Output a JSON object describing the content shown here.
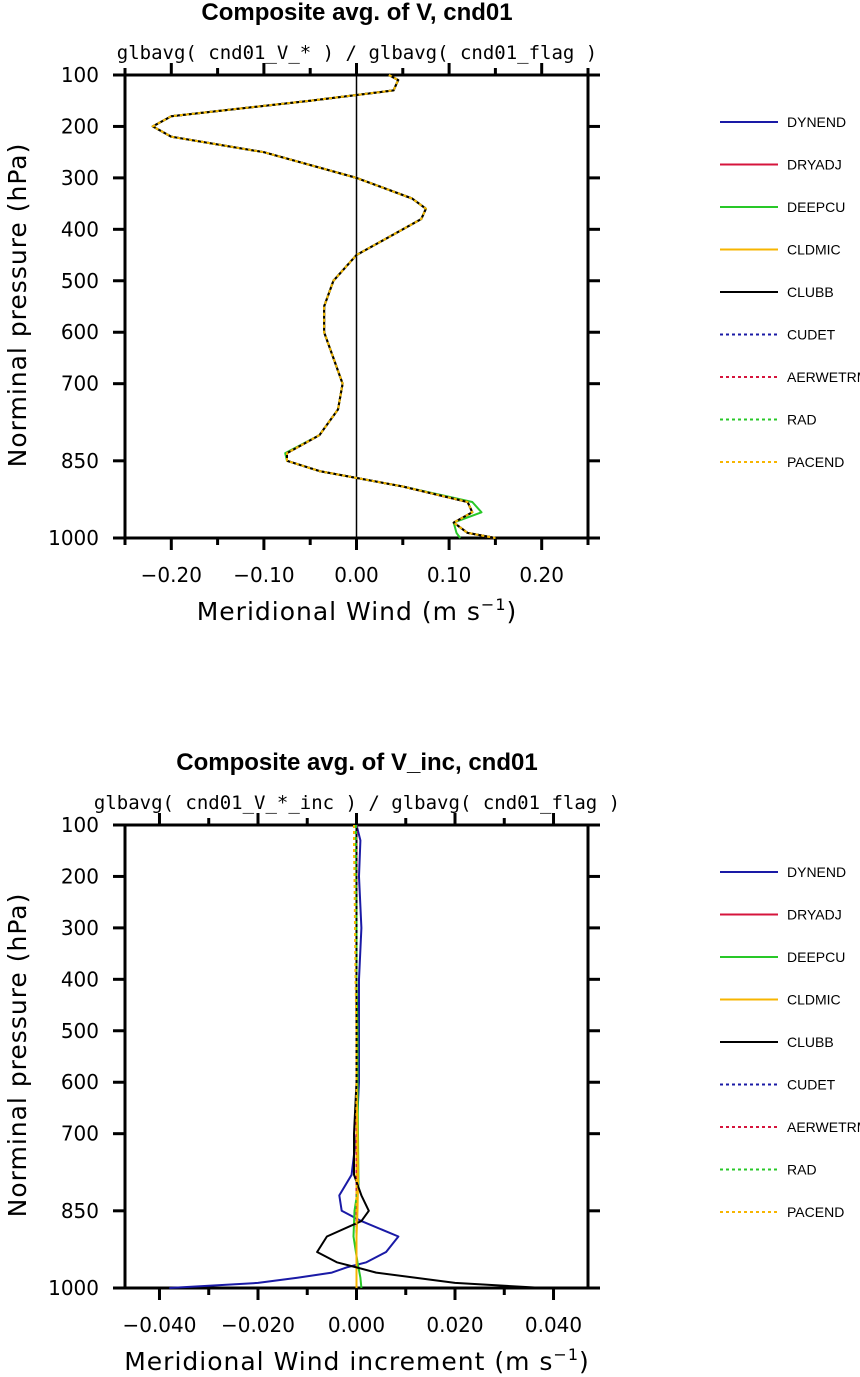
{
  "colors": {
    "DYNEND": "#1a1aa6",
    "DRYADJ": "#d6143c",
    "DEEPCU": "#28c828",
    "CLDMIC": "#f7b500",
    "CLUBB": "#000000",
    "CUDET": "#1a1aa6",
    "AERWETRM": "#d6143c",
    "RAD": "#28c828",
    "PACEND": "#f7b500"
  },
  "chart_data": [
    {
      "type": "line",
      "title": "Composite avg. of V, cnd01",
      "subtitle": "glbavg( cnd01_V_* ) / glbavg( cnd01_flag )",
      "xlabel": "Meridional Wind (m s",
      "xlabel_exp": "−1",
      "xlabel_close": ")",
      "ylabel": "Norminal pressure (hPa)",
      "xlim": [
        -0.25,
        0.25
      ],
      "ylim": [
        100,
        1000
      ],
      "y_axis": "pressure (nonlinear, inverted)",
      "xticks": [
        -0.2,
        -0.1,
        0.0,
        0.1,
        0.2
      ],
      "xtick_labels": [
        "−0.20",
        "−0.10",
        "0.00",
        "0.10",
        "0.20"
      ],
      "yticks": [
        100,
        200,
        300,
        400,
        500,
        600,
        700,
        850,
        1000
      ],
      "ytick_labels": [
        "100",
        "200",
        "300",
        "400",
        "500",
        "600",
        "700",
        "850",
        "1000"
      ],
      "zero_line": true,
      "legend": [
        "DYNEND",
        "DRYADJ",
        "DEEPCU",
        "CLDMIC",
        "CLUBB",
        "CUDET",
        "AERWETRM",
        "RAD",
        "PACEND"
      ],
      "legend_styles": [
        "solid",
        "solid",
        "solid",
        "solid",
        "solid",
        "dotted",
        "dotted",
        "dotted",
        "dotted"
      ],
      "series": [
        {
          "name": "DYNEND",
          "y": [
            100,
            110,
            130,
            150,
            180,
            200,
            220,
            250,
            300,
            340,
            360,
            380,
            420,
            450,
            500,
            550,
            600,
            650,
            700,
            750,
            800,
            835,
            850,
            870,
            900,
            930,
            950,
            970,
            990,
            1000
          ],
          "values": [
            0.035,
            0.045,
            0.04,
            -0.05,
            -0.2,
            -0.22,
            -0.2,
            -0.1,
            0.0,
            0.06,
            0.075,
            0.07,
            0.03,
            0.0,
            -0.025,
            -0.035,
            -0.035,
            -0.025,
            -0.015,
            -0.02,
            -0.04,
            -0.075,
            -0.075,
            -0.04,
            0.05,
            0.12,
            0.125,
            0.105,
            0.12,
            0.15
          ]
        },
        {
          "name": "DRYADJ",
          "y": [
            100,
            110,
            130,
            150,
            180,
            200,
            220,
            250,
            300,
            340,
            360,
            380,
            420,
            450,
            500,
            550,
            600,
            650,
            700,
            750,
            800,
            835,
            850,
            870,
            900,
            930,
            950,
            970,
            990,
            1000
          ],
          "values": [
            0.035,
            0.045,
            0.04,
            -0.05,
            -0.2,
            -0.22,
            -0.2,
            -0.1,
            0.0,
            0.06,
            0.075,
            0.07,
            0.03,
            0.0,
            -0.025,
            -0.035,
            -0.035,
            -0.025,
            -0.015,
            -0.02,
            -0.04,
            -0.075,
            -0.075,
            -0.04,
            0.05,
            0.12,
            0.125,
            0.105,
            0.12,
            0.15
          ]
        },
        {
          "name": "DEEPCU",
          "y": [
            100,
            110,
            130,
            150,
            180,
            200,
            220,
            250,
            300,
            340,
            360,
            380,
            420,
            450,
            500,
            550,
            600,
            650,
            700,
            750,
            800,
            835,
            850,
            870,
            900,
            930,
            950,
            970,
            990,
            1000
          ],
          "values": [
            0.035,
            0.045,
            0.04,
            -0.05,
            -0.2,
            -0.22,
            -0.2,
            -0.1,
            0.0,
            0.06,
            0.075,
            0.07,
            0.03,
            0.0,
            -0.025,
            -0.035,
            -0.035,
            -0.025,
            -0.015,
            -0.02,
            -0.04,
            -0.077,
            -0.075,
            -0.04,
            0.05,
            0.125,
            0.135,
            0.105,
            0.108,
            0.112
          ]
        },
        {
          "name": "CLDMIC",
          "y": [
            100,
            110,
            130,
            150,
            180,
            200,
            220,
            250,
            300,
            340,
            360,
            380,
            420,
            450,
            500,
            550,
            600,
            650,
            700,
            750,
            800,
            835,
            850,
            870,
            900,
            930,
            950,
            970,
            990,
            1000
          ],
          "values": [
            0.035,
            0.045,
            0.04,
            -0.05,
            -0.2,
            -0.22,
            -0.2,
            -0.1,
            0.0,
            0.06,
            0.075,
            0.07,
            0.03,
            0.0,
            -0.025,
            -0.035,
            -0.035,
            -0.025,
            -0.015,
            -0.02,
            -0.04,
            -0.075,
            -0.075,
            -0.04,
            0.05,
            0.12,
            0.125,
            0.105,
            0.12,
            0.15
          ]
        },
        {
          "name": "CLUBB",
          "y": [
            100,
            110,
            130,
            150,
            180,
            200,
            220,
            250,
            300,
            340,
            360,
            380,
            420,
            450,
            500,
            550,
            600,
            650,
            700,
            750,
            800,
            835,
            850,
            870,
            900,
            930,
            950,
            970,
            990,
            1000
          ],
          "values": [
            0.035,
            0.045,
            0.04,
            -0.05,
            -0.2,
            -0.22,
            -0.2,
            -0.1,
            0.0,
            0.06,
            0.075,
            0.07,
            0.03,
            0.0,
            -0.025,
            -0.035,
            -0.035,
            -0.025,
            -0.015,
            -0.02,
            -0.04,
            -0.075,
            -0.075,
            -0.04,
            0.05,
            0.12,
            0.125,
            0.105,
            0.12,
            0.15
          ]
        },
        {
          "name": "CUDET",
          "y": [
            100,
            110,
            130,
            150,
            180,
            200,
            220,
            250,
            300,
            340,
            360,
            380,
            420,
            450,
            500,
            550,
            600,
            650,
            700,
            750,
            800,
            835,
            850,
            870,
            900,
            930,
            950,
            970,
            990,
            1000
          ],
          "values": [
            0.035,
            0.045,
            0.04,
            -0.05,
            -0.2,
            -0.22,
            -0.2,
            -0.1,
            0.0,
            0.06,
            0.075,
            0.07,
            0.03,
            0.0,
            -0.025,
            -0.035,
            -0.035,
            -0.025,
            -0.015,
            -0.02,
            -0.04,
            -0.075,
            -0.075,
            -0.04,
            0.05,
            0.12,
            0.125,
            0.105,
            0.12,
            0.15
          ]
        },
        {
          "name": "AERWETRM",
          "y": [
            100,
            110,
            130,
            150,
            180,
            200,
            220,
            250,
            300,
            340,
            360,
            380,
            420,
            450,
            500,
            550,
            600,
            650,
            700,
            750,
            800,
            835,
            850,
            870,
            900,
            930,
            950,
            970,
            990,
            1000
          ],
          "values": [
            0.035,
            0.045,
            0.04,
            -0.05,
            -0.2,
            -0.22,
            -0.2,
            -0.1,
            0.0,
            0.06,
            0.075,
            0.07,
            0.03,
            0.0,
            -0.025,
            -0.035,
            -0.035,
            -0.025,
            -0.015,
            -0.02,
            -0.04,
            -0.075,
            -0.075,
            -0.04,
            0.05,
            0.12,
            0.125,
            0.105,
            0.12,
            0.15
          ]
        },
        {
          "name": "RAD",
          "y": [
            100,
            110,
            130,
            150,
            180,
            200,
            220,
            250,
            300,
            340,
            360,
            380,
            420,
            450,
            500,
            550,
            600,
            650,
            700,
            750,
            800,
            835,
            850,
            870,
            900,
            930,
            950,
            970,
            990,
            1000
          ],
          "values": [
            0.035,
            0.045,
            0.04,
            -0.05,
            -0.2,
            -0.22,
            -0.2,
            -0.1,
            0.0,
            0.06,
            0.075,
            0.07,
            0.03,
            0.0,
            -0.025,
            -0.035,
            -0.035,
            -0.025,
            -0.015,
            -0.02,
            -0.04,
            -0.075,
            -0.075,
            -0.04,
            0.05,
            0.12,
            0.125,
            0.105,
            0.12,
            0.15
          ]
        },
        {
          "name": "PACEND",
          "y": [
            100,
            110,
            130,
            150,
            180,
            200,
            220,
            250,
            300,
            340,
            360,
            380,
            420,
            450,
            500,
            550,
            600,
            650,
            700,
            750,
            800,
            835,
            850,
            870,
            900,
            930,
            950,
            970,
            990,
            1000
          ],
          "values": [
            0.035,
            0.045,
            0.04,
            -0.05,
            -0.2,
            -0.22,
            -0.2,
            -0.1,
            0.0,
            0.06,
            0.075,
            0.07,
            0.03,
            0.0,
            -0.025,
            -0.035,
            -0.035,
            -0.025,
            -0.015,
            -0.02,
            -0.04,
            -0.075,
            -0.075,
            -0.04,
            0.05,
            0.12,
            0.125,
            0.105,
            0.12,
            0.15
          ]
        }
      ]
    },
    {
      "type": "line",
      "title": "Composite avg. of V_inc, cnd01",
      "subtitle": "glbavg( cnd01_V_*_inc ) / glbavg( cnd01_flag )",
      "xlabel": "Meridional Wind increment (m s",
      "xlabel_exp": "−1",
      "xlabel_close": ")",
      "ylabel": "Norminal pressure (hPa)",
      "xlim": [
        -0.047,
        0.047
      ],
      "ylim": [
        100,
        1000
      ],
      "y_axis": "pressure (nonlinear, inverted)",
      "xticks": [
        -0.04,
        -0.02,
        0.0,
        0.02,
        0.04
      ],
      "xtick_labels": [
        "−0.040",
        "−0.020",
        "0.000",
        "0.020",
        "0.040"
      ],
      "yticks": [
        100,
        200,
        300,
        400,
        500,
        600,
        700,
        850,
        1000
      ],
      "ytick_labels": [
        "100",
        "200",
        "300",
        "400",
        "500",
        "600",
        "700",
        "850",
        "1000"
      ],
      "zero_line": false,
      "legend": [
        "DYNEND",
        "DRYADJ",
        "DEEPCU",
        "CLDMIC",
        "CLUBB",
        "CUDET",
        "AERWETRM",
        "RAD",
        "PACEND"
      ],
      "legend_styles": [
        "solid",
        "solid",
        "solid",
        "solid",
        "solid",
        "dotted",
        "dotted",
        "dotted",
        "dotted"
      ],
      "series": [
        {
          "name": "DYNEND",
          "y": [
            100,
            130,
            200,
            300,
            400,
            500,
            600,
            700,
            780,
            820,
            850,
            870,
            900,
            930,
            950,
            960,
            970,
            980,
            990,
            1000
          ],
          "values": [
            0.0,
            0.0008,
            0.0005,
            0.001,
            0.0005,
            0.0005,
            0.0005,
            0.0,
            -0.001,
            -0.0035,
            -0.003,
            0.001,
            0.0085,
            0.006,
            0.002,
            -0.002,
            -0.005,
            -0.012,
            -0.02,
            -0.038
          ]
        },
        {
          "name": "DRYADJ",
          "y": [
            100,
            200,
            300,
            400,
            500,
            600,
            700,
            800,
            850,
            900,
            950,
            1000
          ],
          "values": [
            0,
            0,
            0,
            0,
            0,
            0,
            0,
            0,
            0,
            0,
            0,
            0
          ]
        },
        {
          "name": "DEEPCU",
          "y": [
            100,
            200,
            300,
            400,
            500,
            600,
            700,
            800,
            850,
            900,
            950,
            980,
            1000
          ],
          "values": [
            0.0,
            0.0,
            0.0,
            0.0,
            0.0002,
            0.0002,
            0.0003,
            0.0004,
            -0.0004,
            -0.0006,
            0.0002,
            0.0008,
            0.001
          ]
        },
        {
          "name": "CLDMIC",
          "y": [
            100,
            200,
            300,
            400,
            500,
            600,
            700,
            800,
            850,
            900,
            950,
            1000
          ],
          "values": [
            0.0,
            0.0,
            0.0,
            0.0,
            0.0,
            0.0,
            0.0002,
            0.0003,
            0.0002,
            0.0,
            0.0,
            0.0
          ]
        },
        {
          "name": "CLUBB",
          "y": [
            100,
            200,
            300,
            400,
            500,
            600,
            700,
            780,
            820,
            850,
            870,
            900,
            930,
            950,
            960,
            970,
            980,
            990,
            1000
          ],
          "values": [
            0.0,
            0.0,
            0.0,
            0.0,
            0.0,
            0.0,
            -0.0005,
            -0.0005,
            0.001,
            0.0025,
            0.001,
            -0.006,
            -0.008,
            -0.004,
            0.0,
            0.004,
            0.012,
            0.02,
            0.038
          ]
        },
        {
          "name": "CUDET",
          "y": [
            100,
            200,
            300,
            400,
            500,
            600,
            700,
            800,
            850,
            900,
            950,
            1000
          ],
          "values": [
            0,
            0,
            0,
            0,
            0,
            0,
            0,
            0,
            0,
            0,
            0,
            0
          ]
        },
        {
          "name": "AERWETRM",
          "y": [
            100,
            200,
            300,
            400,
            500,
            600,
            700,
            800,
            850,
            900,
            950,
            1000
          ],
          "values": [
            0,
            0,
            0,
            0,
            0,
            0,
            0,
            0,
            0,
            0,
            0,
            0
          ]
        },
        {
          "name": "RAD",
          "y": [
            100,
            200,
            300,
            400,
            500,
            600,
            700,
            800,
            850,
            900,
            950,
            1000
          ],
          "values": [
            -0.0001,
            -0.0001,
            0.0,
            0.0,
            0.0,
            0.0,
            0.0,
            0.0,
            0.0,
            0.0,
            0.0,
            0.0
          ]
        },
        {
          "name": "PACEND",
          "y": [
            100,
            150,
            200,
            300,
            400,
            500,
            600,
            700,
            800,
            850,
            900,
            950,
            1000
          ],
          "values": [
            -0.0005,
            -0.0005,
            -0.0004,
            -0.0003,
            -0.0002,
            0.0,
            0.0,
            0.0,
            0.0,
            0.0,
            0.0,
            0.0,
            0.0
          ]
        }
      ]
    }
  ]
}
